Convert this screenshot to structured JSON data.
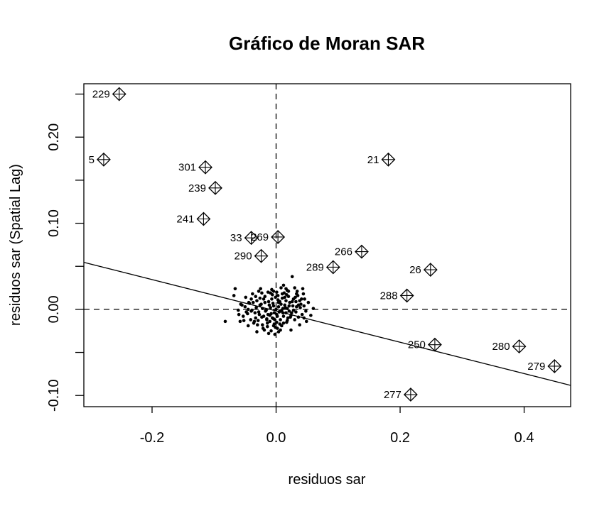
{
  "chart_data": {
    "type": "scatter",
    "title": "Gráfico de Moran SAR",
    "xlabel": "residuos sar",
    "ylabel": "residuos sar (Spatial Lag)",
    "xlim": [
      -0.31,
      0.475
    ],
    "ylim": [
      -0.113,
      0.262
    ],
    "x_ticks": [
      -0.2,
      0.0,
      0.2,
      0.4
    ],
    "x_tick_labels": [
      "-0.2",
      "0.0",
      "0.2",
      "0.4"
    ],
    "y_ticks": [
      -0.1,
      0.0,
      0.1,
      0.2
    ],
    "y_tick_labels": [
      "-0.10",
      "0.00",
      "0.10",
      "0.20"
    ],
    "y_minor_ticks": [
      -0.05,
      0.05,
      0.15,
      0.25
    ],
    "reference_lines": {
      "x": 0.0,
      "y": 0.0,
      "style": "dashed"
    },
    "regression_line": {
      "intercept": -0.0018,
      "slope": -0.182
    },
    "grid": false,
    "influential_points": [
      {
        "label": "229",
        "x": -0.253,
        "y": 0.25
      },
      {
        "label": "5",
        "x": -0.278,
        "y": 0.174
      },
      {
        "label": "301",
        "x": -0.114,
        "y": 0.165
      },
      {
        "label": "239",
        "x": -0.098,
        "y": 0.141
      },
      {
        "label": "241",
        "x": -0.117,
        "y": 0.105
      },
      {
        "label": "33",
        "x": -0.04,
        "y": 0.083
      },
      {
        "label": "269",
        "x": 0.003,
        "y": 0.084
      },
      {
        "label": "290",
        "x": -0.024,
        "y": 0.062
      },
      {
        "label": "21",
        "x": 0.181,
        "y": 0.174
      },
      {
        "label": "266",
        "x": 0.138,
        "y": 0.067
      },
      {
        "label": "289",
        "x": 0.092,
        "y": 0.049
      },
      {
        "label": "26",
        "x": 0.249,
        "y": 0.046
      },
      {
        "label": "288",
        "x": 0.211,
        "y": 0.016
      },
      {
        "label": "250",
        "x": 0.256,
        "y": -0.041
      },
      {
        "label": "280",
        "x": 0.392,
        "y": -0.043
      },
      {
        "label": "279",
        "x": 0.449,
        "y": -0.066
      },
      {
        "label": "277",
        "x": 0.217,
        "y": -0.099
      }
    ],
    "points": [
      [
        0.0,
        0.0
      ],
      [
        0.005,
        -0.003
      ],
      [
        -0.004,
        0.004
      ],
      [
        0.008,
        0.006
      ],
      [
        -0.008,
        -0.005
      ],
      [
        0.012,
        -0.008
      ],
      [
        -0.012,
        0.009
      ],
      [
        0.003,
        0.011
      ],
      [
        -0.002,
        -0.012
      ],
      [
        0.015,
        0.002
      ],
      [
        -0.016,
        -0.001
      ],
      [
        0.01,
        0.013
      ],
      [
        -0.01,
        -0.014
      ],
      [
        0.019,
        -0.01
      ],
      [
        -0.02,
        0.012
      ],
      [
        0.006,
        -0.017
      ],
      [
        -0.006,
        0.017
      ],
      [
        0.022,
        0.008
      ],
      [
        -0.023,
        -0.009
      ],
      [
        0.017,
        -0.015
      ],
      [
        -0.018,
        0.015
      ],
      [
        0.025,
        -0.004
      ],
      [
        -0.026,
        0.005
      ],
      [
        0.001,
        0.02
      ],
      [
        -0.001,
        -0.021
      ],
      [
        0.028,
        0.012
      ],
      [
        -0.029,
        -0.013
      ],
      [
        0.013,
        0.019
      ],
      [
        -0.014,
        -0.02
      ],
      [
        0.03,
        -0.012
      ],
      [
        -0.031,
        0.01
      ],
      [
        0.007,
        -0.024
      ],
      [
        -0.007,
        0.023
      ],
      [
        0.033,
        0.003
      ],
      [
        -0.034,
        -0.004
      ],
      [
        0.02,
        0.021
      ],
      [
        -0.021,
        -0.022
      ],
      [
        0.036,
        -0.009
      ],
      [
        -0.037,
        0.008
      ],
      [
        0.004,
        0.003
      ],
      [
        -0.003,
        -0.004
      ],
      [
        0.009,
        -0.001
      ],
      [
        -0.009,
        0.002
      ],
      [
        0.002,
        -0.008
      ],
      [
        -0.005,
        0.007
      ],
      [
        0.014,
        0.005
      ],
      [
        -0.013,
        -0.006
      ],
      [
        0.011,
        -0.004
      ],
      [
        -0.011,
        0.005
      ],
      [
        0.006,
        0.009
      ],
      [
        -0.006,
        -0.01
      ],
      [
        0.018,
        0.001
      ],
      [
        -0.017,
        -0.002
      ],
      [
        0.016,
        0.01
      ],
      [
        -0.015,
        -0.011
      ],
      [
        0.024,
        -0.007
      ],
      [
        -0.024,
        0.006
      ],
      [
        0.001,
        -0.015
      ],
      [
        -0.001,
        0.014
      ],
      [
        0.027,
        0.004
      ],
      [
        -0.028,
        -0.003
      ],
      [
        0.021,
        -0.002
      ],
      [
        -0.022,
        0.001
      ],
      [
        0.003,
        0.016
      ],
      [
        -0.003,
        -0.017
      ],
      [
        0.032,
        0.009
      ],
      [
        -0.033,
        -0.01
      ],
      [
        0.009,
        -0.019
      ],
      [
        -0.009,
        0.019
      ],
      [
        0.039,
        0.002
      ],
      [
        -0.04,
        -0.002
      ],
      [
        0.042,
        -0.006
      ],
      [
        -0.043,
        0.007
      ],
      [
        0.045,
        0.004
      ],
      [
        -0.046,
        -0.005
      ],
      [
        0.035,
        0.016
      ],
      [
        -0.036,
        -0.016
      ],
      [
        0.041,
        0.012
      ],
      [
        -0.041,
        -0.012
      ],
      [
        0.048,
        -0.002
      ],
      [
        -0.05,
        0.003
      ],
      [
        0.052,
        0.008
      ],
      [
        -0.053,
        -0.008
      ],
      [
        0.044,
        0.018
      ],
      [
        -0.045,
        -0.019
      ],
      [
        0.056,
        -0.007
      ],
      [
        -0.057,
        0.006
      ],
      [
        0.03,
        0.025
      ],
      [
        -0.031,
        -0.026
      ],
      [
        0.049,
        -0.014
      ],
      [
        -0.049,
        0.014
      ],
      [
        0.038,
        -0.018
      ],
      [
        -0.038,
        0.018
      ],
      [
        0.012,
        0.028
      ],
      [
        -0.012,
        -0.028
      ],
      [
        0.024,
        -0.024
      ],
      [
        -0.025,
        0.024
      ],
      [
        0.06,
        0.001
      ],
      [
        -0.061,
        -0.001
      ],
      [
        0.026,
        0.038
      ],
      [
        0.043,
        0.024
      ],
      [
        0.034,
        0.021
      ],
      [
        0.018,
        0.022
      ],
      [
        0.008,
        0.025
      ],
      [
        -0.004,
        0.021
      ],
      [
        0.016,
        0.024
      ],
      [
        -0.066,
        0.024
      ],
      [
        -0.068,
        0.016
      ],
      [
        -0.055,
        0.005
      ],
      [
        -0.06,
        -0.006
      ],
      [
        -0.058,
        -0.014
      ],
      [
        -0.052,
        -0.013
      ],
      [
        -0.082,
        -0.014
      ],
      [
        -0.045,
        0.0
      ],
      [
        -0.048,
        -0.003
      ],
      [
        -0.035,
        -0.014
      ],
      [
        -0.03,
        -0.018
      ],
      [
        -0.022,
        -0.018
      ],
      [
        -0.019,
        -0.024
      ],
      [
        -0.014,
        -0.016
      ],
      [
        -0.008,
        -0.025
      ],
      [
        -0.004,
        -0.019
      ],
      [
        0.002,
        -0.022
      ],
      [
        0.007,
        -0.012
      ],
      [
        0.012,
        -0.016
      ],
      [
        0.018,
        -0.013
      ],
      [
        0.023,
        -0.009
      ],
      [
        0.032,
        -0.003
      ],
      [
        0.04,
        0.006
      ],
      [
        0.046,
        0.012
      ],
      [
        0.038,
        0.01
      ],
      [
        0.028,
        -0.001
      ],
      [
        0.02,
        0.015
      ],
      [
        0.014,
        0.014
      ],
      [
        0.004,
        0.008
      ],
      [
        -0.007,
        0.012
      ],
      [
        -0.018,
        0.008
      ],
      [
        -0.026,
        0.013
      ],
      [
        -0.033,
        0.015
      ],
      [
        -0.04,
        0.012
      ],
      [
        -0.044,
        0.008
      ],
      [
        -0.039,
        -0.001
      ],
      [
        -0.032,
        0.002
      ],
      [
        -0.027,
        -0.006
      ],
      [
        -0.02,
        -0.008
      ],
      [
        -0.015,
        -0.012
      ],
      [
        -0.01,
        -0.007
      ],
      [
        -0.004,
        -0.011
      ],
      [
        0.001,
        -0.006
      ],
      [
        0.006,
        -0.002
      ],
      [
        0.011,
        0.001
      ],
      [
        0.016,
        -0.004
      ],
      [
        0.021,
        0.004
      ],
      [
        0.026,
        0.009
      ],
      [
        0.031,
        0.014
      ],
      [
        0.004,
        -0.026
      ],
      [
        -0.002,
        -0.029
      ],
      [
        0.01,
        0.018
      ],
      [
        0.017,
        0.017
      ],
      [
        -0.013,
        0.02
      ],
      [
        -0.023,
        0.019
      ],
      [
        -0.028,
        0.021
      ],
      [
        0.033,
        0.018
      ],
      [
        0.036,
        0.005
      ],
      [
        0.045,
        -0.01
      ]
    ]
  }
}
